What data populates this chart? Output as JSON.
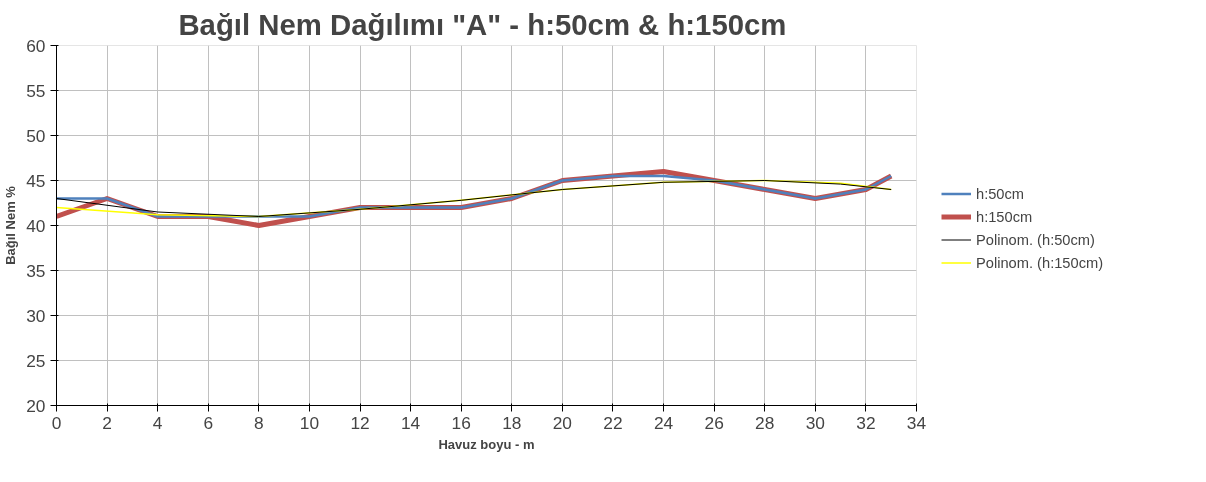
{
  "chart_data": {
    "type": "line",
    "title": "Bağıl Nem Dağılımı  \"A\" - h:50cm & h:150cm",
    "xlabel": "Havuz boyu - m",
    "ylabel": "Bağıl Nem %",
    "x": [
      0,
      2,
      4,
      6,
      8,
      10,
      12,
      14,
      16,
      18,
      20,
      22,
      24,
      26,
      28,
      30,
      32,
      33
    ],
    "series": [
      {
        "name": "h:50cm",
        "color": "#4f81bd",
        "values": [
          43,
          43,
          41,
          41,
          41,
          41,
          42,
          42,
          42,
          43,
          45,
          45.5,
          45.5,
          45,
          44,
          43,
          44,
          45.5
        ]
      },
      {
        "name": "h:150cm",
        "color": "#c0504d",
        "values": [
          41,
          43,
          41,
          41,
          40,
          41,
          42,
          42,
          42,
          43,
          45,
          45.5,
          46,
          45,
          44,
          43,
          44,
          45.5
        ]
      },
      {
        "name": "Polinom. (h:50cm)",
        "color": "#000000",
        "x": [
          0,
          4,
          8,
          12,
          16,
          20,
          24,
          28,
          31,
          33
        ],
        "values": [
          43,
          41.5,
          41,
          41.8,
          42.8,
          44,
          44.8,
          45,
          44.6,
          44
        ]
      },
      {
        "name": "Polinom. (h:150cm)",
        "color": "#ffff00",
        "x": [
          0,
          4,
          8,
          12,
          16,
          20,
          24,
          28,
          31,
          33
        ],
        "values": [
          42,
          41.2,
          41,
          41.8,
          42.8,
          44,
          44.8,
          45,
          44.7,
          44
        ]
      }
    ],
    "xlim": [
      0,
      34
    ],
    "xticks": [
      0,
      2,
      4,
      6,
      8,
      10,
      12,
      14,
      16,
      18,
      20,
      22,
      24,
      26,
      28,
      30,
      32,
      34
    ],
    "ylim": [
      20,
      60
    ],
    "yticks": [
      20,
      25,
      30,
      35,
      40,
      45,
      50,
      55,
      60
    ],
    "grid": true,
    "legend": "right"
  }
}
